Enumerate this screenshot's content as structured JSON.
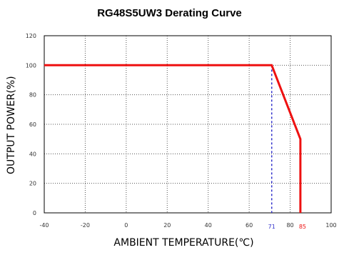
{
  "chart_data": {
    "type": "line",
    "title": "RG48S5UW3 Derating Curve",
    "xlabel": "AMBIENT TEMPERATURE(℃)",
    "ylabel": "OUTPUT POWER(%)",
    "xlim": [
      -40,
      100
    ],
    "ylim": [
      0,
      120
    ],
    "x_ticks": [
      -40,
      -20,
      0,
      20,
      40,
      60,
      80,
      100
    ],
    "y_ticks": [
      0,
      20,
      40,
      60,
      80,
      100,
      120
    ],
    "grid": true,
    "series": [
      {
        "color": "#ee1111",
        "points": [
          {
            "x": -40,
            "y": 100
          },
          {
            "x": 71,
            "y": 100
          },
          {
            "x": 85,
            "y": 50
          },
          {
            "x": 85,
            "y": 0
          }
        ]
      }
    ],
    "markers": [
      {
        "x": 71,
        "label": "71",
        "color": "#3333cc"
      },
      {
        "x": 85,
        "label": "85",
        "color": "#ee1111"
      }
    ]
  }
}
